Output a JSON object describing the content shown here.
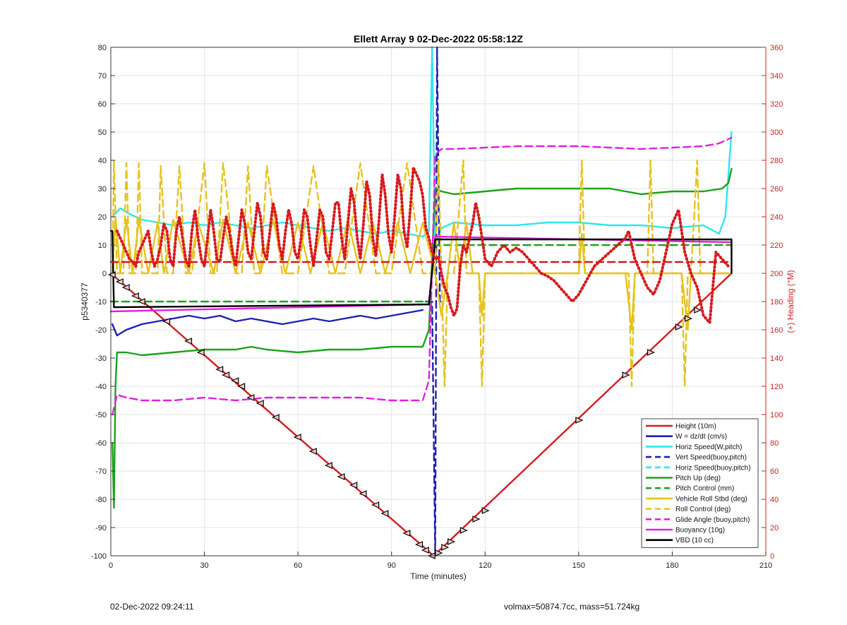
{
  "footer": {
    "left": "02-Dec-2022 09:24:11",
    "right": "volmax=50874.7cc, mass=51.724kg"
  },
  "chart_data": {
    "type": "line",
    "title": "Ellett Array 9 02-Dec-2022 05:58:12Z",
    "xlabel": "Time (minutes)",
    "ylabel": "p5340377",
    "ylabel_right": "(+) Heading (°M)",
    "xlim": [
      0,
      210
    ],
    "ylim": [
      -100,
      80
    ],
    "ylim_right": [
      0,
      360
    ],
    "xticks": [
      0,
      30,
      60,
      90,
      120,
      150,
      180,
      210
    ],
    "yticks": [
      -100,
      -90,
      -80,
      -70,
      -60,
      -50,
      -40,
      -30,
      -20,
      -10,
      0,
      10,
      20,
      30,
      40,
      50,
      60,
      70,
      80
    ],
    "yticks_right": [
      0,
      20,
      40,
      60,
      80,
      100,
      120,
      140,
      160,
      180,
      200,
      220,
      240,
      260,
      280,
      300,
      320,
      340,
      360
    ],
    "grid": true,
    "legend_position": "bottom-right",
    "colors": {
      "red": "#d7191c",
      "blue": "#1f1fb4",
      "cyan": "#2ee6ee",
      "green": "#1aa31a",
      "gold": "#e6c21e",
      "magenta": "#e020e0",
      "black": "#000000",
      "heading_axis": "#cc2222"
    },
    "series": [
      {
        "name": "Height (10m)",
        "color": "#d7191c",
        "style": "solid",
        "x": [
          0,
          103.5,
          199
        ],
        "y": [
          0,
          -100,
          0
        ]
      },
      {
        "name": "W = dz/dt (cm/s)",
        "color": "#1f1fb4",
        "style": "solid",
        "x": [
          0.5,
          2,
          5,
          10,
          15,
          20,
          25,
          30,
          35,
          40,
          45,
          50,
          55,
          60,
          65,
          70,
          75,
          80,
          85,
          90,
          95,
          100
        ],
        "y": [
          -18,
          -22,
          -20,
          -18,
          -17,
          -16,
          -15,
          -16,
          -15,
          -17,
          -16,
          -17,
          -18,
          -17,
          -16,
          -17,
          -16,
          -15,
          -16,
          -15,
          -14,
          -13
        ]
      },
      {
        "name": "Horiz Speed(W,pitch)",
        "color": "#2ee6ee",
        "style": "solid",
        "x": [
          0.5,
          3,
          6,
          10,
          15,
          20,
          25,
          30,
          35,
          40,
          45,
          50,
          55,
          60,
          65,
          70,
          75,
          80,
          85,
          90,
          95,
          100,
          102,
          103,
          104,
          106,
          110,
          120,
          130,
          140,
          150,
          160,
          170,
          180,
          190,
          195,
          197,
          199
        ],
        "y": [
          20,
          23,
          21,
          19,
          18,
          17,
          18,
          17,
          18,
          17,
          16,
          17,
          18,
          17,
          16,
          15,
          16,
          15,
          14,
          15,
          14,
          13,
          15,
          80,
          10,
          16,
          18,
          17,
          17,
          18,
          18,
          17,
          17,
          16,
          17,
          14,
          20,
          50
        ]
      },
      {
        "name": "Vert Speed(buoy,pitch)",
        "color": "#1f1fb4",
        "style": "dashed",
        "x": [
          101,
          103,
          104,
          104.6,
          105.5,
          106.5
        ],
        "y": [
          -10,
          -10,
          -100,
          80,
          -10,
          -10
        ]
      },
      {
        "name": "Horiz Speed(buoy,pitch)",
        "color": "#2ee6ee",
        "style": "dashed",
        "x": [],
        "y": []
      },
      {
        "name": "Pitch Up (deg)",
        "color": "#1aa31a",
        "style": "solid",
        "x": [
          0.5,
          1,
          1.5,
          2,
          5,
          10,
          20,
          30,
          40,
          45,
          50,
          60,
          70,
          80,
          90,
          100,
          102,
          104,
          106,
          110,
          120,
          130,
          140,
          150,
          160,
          170,
          180,
          190,
          196,
          198,
          199
        ],
        "y": [
          -60,
          -83,
          -40,
          -28,
          -28,
          -29,
          -28,
          -27,
          -27,
          -26,
          -27,
          -28,
          -27,
          -27,
          -26,
          -26,
          -20,
          30,
          29,
          28,
          29,
          30,
          30,
          30,
          30,
          28,
          29,
          29,
          30,
          32,
          37
        ]
      },
      {
        "name": "Pitch Control (mm)",
        "color": "#1aa31a",
        "style": "dashed",
        "x": [
          0,
          102,
          104,
          199
        ],
        "y": [
          -10,
          -10,
          10,
          10
        ]
      },
      {
        "name": "Vehicle Roll Stbd (deg)",
        "color": "#e6c21e",
        "style": "solid",
        "x": [
          0.5,
          1.5,
          3,
          5,
          7,
          9,
          12,
          15,
          17,
          20,
          25,
          28,
          33,
          36,
          40,
          44,
          48,
          52,
          56,
          60,
          64,
          68,
          72,
          76,
          80,
          84,
          88,
          92,
          96,
          100,
          104,
          106,
          108,
          110,
          112,
          114,
          116,
          118,
          119,
          120,
          130,
          150,
          151,
          152,
          165,
          167,
          168,
          170,
          183,
          185,
          186,
          190,
          195,
          199
        ],
        "y": [
          0,
          20,
          0,
          19,
          0,
          19,
          0,
          18,
          0,
          19,
          0,
          18,
          0,
          19,
          0,
          18,
          0,
          19,
          0,
          18,
          0,
          18,
          0,
          19,
          0,
          18,
          0,
          18,
          0,
          18,
          0,
          -15,
          0,
          18,
          0,
          18,
          0,
          0,
          -15,
          0,
          0,
          0,
          14,
          0,
          0,
          -20,
          0,
          0,
          0,
          -20,
          0,
          0,
          0,
          0
        ]
      },
      {
        "name": "Roll Control (deg)",
        "color": "#e6c21e",
        "style": "dashed",
        "x": [
          0.5,
          1,
          2,
          4,
          5,
          6,
          8,
          9,
          10,
          15,
          16,
          18,
          20,
          22,
          24,
          26,
          30,
          32,
          34,
          36,
          40,
          42,
          44,
          46,
          48,
          50,
          55,
          60,
          65,
          70,
          75,
          80,
          85,
          90,
          95,
          100,
          104,
          105,
          106,
          107,
          108,
          110,
          113,
          114,
          118,
          119,
          120,
          150,
          151,
          152,
          166,
          167,
          168,
          172,
          173,
          174,
          183,
          184,
          185,
          186,
          188,
          189,
          199
        ],
        "y": [
          0,
          40,
          0,
          0,
          39,
          0,
          0,
          39,
          0,
          0,
          38,
          0,
          0,
          38,
          0,
          0,
          39,
          0,
          0,
          39,
          0,
          0,
          38,
          0,
          0,
          38,
          0,
          0,
          38,
          0,
          0,
          39,
          0,
          0,
          39,
          0,
          0,
          40,
          0,
          -40,
          0,
          0,
          40,
          0,
          0,
          -40,
          0,
          0,
          40,
          0,
          0,
          -40,
          0,
          0,
          40,
          0,
          0,
          -40,
          0,
          0,
          40,
          0,
          0
        ]
      },
      {
        "name": "Glide Angle (buoy,pitch)",
        "color": "#e020e0",
        "style": "dashed",
        "x": [
          0.5,
          2,
          5,
          10,
          20,
          30,
          40,
          50,
          60,
          70,
          80,
          90,
          100,
          102,
          104,
          106,
          110,
          120,
          130,
          140,
          150,
          160,
          170,
          180,
          190,
          195,
          199
        ],
        "y": [
          -50,
          -43,
          -44,
          -45,
          -45,
          -44,
          -45,
          -44,
          -44,
          -44,
          -44,
          -45,
          -45,
          -38,
          42,
          44,
          44,
          44.5,
          45,
          45,
          45,
          44.5,
          44,
          44.5,
          45,
          46,
          48
        ]
      },
      {
        "name": "Buoyancy (10g)",
        "color": "#e020e0",
        "style": "solid",
        "x": [
          0,
          102,
          104,
          199
        ],
        "y": [
          -13.5,
          -11,
          13,
          11
        ]
      },
      {
        "name": "VBD (10 cc)",
        "color": "#000000",
        "style": "solid",
        "x": [
          0,
          0.5,
          1,
          102,
          104,
          199,
          199
        ],
        "y": [
          15,
          15,
          -12,
          -11,
          12,
          12,
          0
        ]
      },
      {
        "name": "Heading",
        "color": "#d7191c",
        "style": "dotted",
        "axis": "right",
        "x": [
          2,
          3,
          4,
          5,
          6,
          7,
          8,
          9,
          10,
          11,
          12,
          13,
          14,
          15,
          16,
          17,
          18,
          19,
          20,
          21,
          22,
          23,
          24,
          25,
          26,
          27,
          28,
          29,
          30,
          31,
          32,
          33,
          34,
          35,
          36,
          37,
          38,
          39,
          40,
          41,
          42,
          43,
          44,
          45,
          46,
          47,
          48,
          49,
          50,
          51,
          52,
          53,
          54,
          55,
          56,
          57,
          58,
          59,
          60,
          61,
          62,
          63,
          64,
          65,
          66,
          67,
          68,
          69,
          70,
          71,
          72,
          73,
          74,
          75,
          76,
          77,
          78,
          79,
          80,
          81,
          82,
          83,
          84,
          85,
          86,
          87,
          88,
          89,
          90,
          91,
          92,
          93,
          94,
          95,
          96,
          97,
          98,
          99,
          100,
          101,
          102,
          103,
          104,
          105,
          106,
          107,
          108,
          109,
          110,
          111,
          112,
          113,
          114,
          115,
          116,
          117,
          118,
          119,
          120,
          122,
          124,
          126,
          128,
          130,
          132,
          134,
          136,
          138,
          140,
          142,
          144,
          146,
          148,
          150,
          155,
          160,
          165,
          166,
          167,
          168,
          170,
          172,
          174,
          176,
          178,
          180,
          182,
          184,
          186,
          188,
          190,
          192,
          194,
          196,
          198
        ],
        "y": [
          230,
          225,
          220,
          215,
          210,
          208,
          205,
          215,
          220,
          225,
          230,
          215,
          205,
          210,
          220,
          235,
          230,
          210,
          205,
          230,
          240,
          225,
          210,
          205,
          230,
          245,
          225,
          210,
          205,
          225,
          245,
          230,
          210,
          208,
          225,
          240,
          230,
          215,
          205,
          225,
          245,
          235,
          215,
          210,
          230,
          250,
          240,
          215,
          210,
          230,
          250,
          240,
          220,
          210,
          230,
          245,
          235,
          215,
          210,
          225,
          245,
          240,
          220,
          205,
          225,
          245,
          240,
          215,
          210,
          230,
          250,
          250,
          225,
          210,
          235,
          260,
          250,
          225,
          210,
          235,
          265,
          255,
          225,
          212,
          238,
          270,
          255,
          228,
          215,
          240,
          270,
          260,
          230,
          218,
          245,
          275,
          270,
          265,
          255,
          232,
          225,
          215,
          210,
          212,
          200,
          190,
          185,
          176,
          170,
          175,
          205,
          220,
          215,
          225,
          235,
          250,
          240,
          225,
          210,
          205,
          215,
          220,
          215,
          218,
          215,
          210,
          205,
          200,
          198,
          195,
          190,
          185,
          180,
          185,
          205,
          215,
          225,
          230,
          220,
          210,
          200,
          190,
          185,
          195,
          215,
          235,
          245,
          215,
          200,
          190,
          170,
          165,
          215,
          210,
          205
        ]
      },
      {
        "name": "Heading reference",
        "color": "#d7191c",
        "style": "dashed",
        "axis": "right",
        "x": [
          0,
          102,
          104,
          199
        ],
        "y": [
          208,
          208,
          208,
          208
        ]
      },
      {
        "name": "Markers",
        "color": "#000000",
        "style": "markers",
        "x": [
          0.5,
          3,
          5,
          8,
          10,
          18,
          25,
          29,
          35,
          37,
          40,
          42,
          45,
          48,
          53,
          60,
          65,
          70,
          74,
          78,
          81,
          85,
          88,
          95,
          99,
          101,
          103,
          105,
          107,
          109,
          113,
          117,
          120,
          150,
          165,
          173,
          182,
          185,
          188
        ],
        "y": [
          -0.5,
          -3,
          -5,
          -8,
          -10,
          -17,
          -24,
          -28,
          -34,
          -36,
          -38,
          -40,
          -44,
          -46,
          -51,
          -58,
          -63,
          -68,
          -72,
          -75,
          -78,
          -82,
          -85,
          -92,
          -96,
          -98,
          -100,
          -99,
          -97,
          -95,
          -91,
          -87,
          -84,
          -52,
          -36,
          -28,
          -19,
          -16,
          -13
        ]
      }
    ],
    "legend": [
      {
        "label": "Height (10m)",
        "color": "#d7191c",
        "style": "solid"
      },
      {
        "label": "W = dz/dt (cm/s)",
        "color": "#1f1fb4",
        "style": "solid"
      },
      {
        "label": "Horiz Speed(W,pitch)",
        "color": "#2ee6ee",
        "style": "solid"
      },
      {
        "label": "Vert Speed(buoy,pitch)",
        "color": "#1f1fb4",
        "style": "dashed"
      },
      {
        "label": "Horiz Speed(buoy,pitch)",
        "color": "#2ee6ee",
        "style": "dashed"
      },
      {
        "label": "Pitch Up (deg)",
        "color": "#1aa31a",
        "style": "solid"
      },
      {
        "label": "Pitch Control (mm)",
        "color": "#1aa31a",
        "style": "dashed"
      },
      {
        "label": "Vehicle Roll Stbd (deg)",
        "color": "#e6c21e",
        "style": "solid"
      },
      {
        "label": "Roll Control (deg)",
        "color": "#e6c21e",
        "style": "dashed"
      },
      {
        "label": "Glide Angle (buoy,pitch)",
        "color": "#e020e0",
        "style": "dashed"
      },
      {
        "label": "Buoyancy (10g)",
        "color": "#e020e0",
        "style": "solid"
      },
      {
        "label": "VBD (10 cc)",
        "color": "#000000",
        "style": "solid"
      }
    ]
  }
}
